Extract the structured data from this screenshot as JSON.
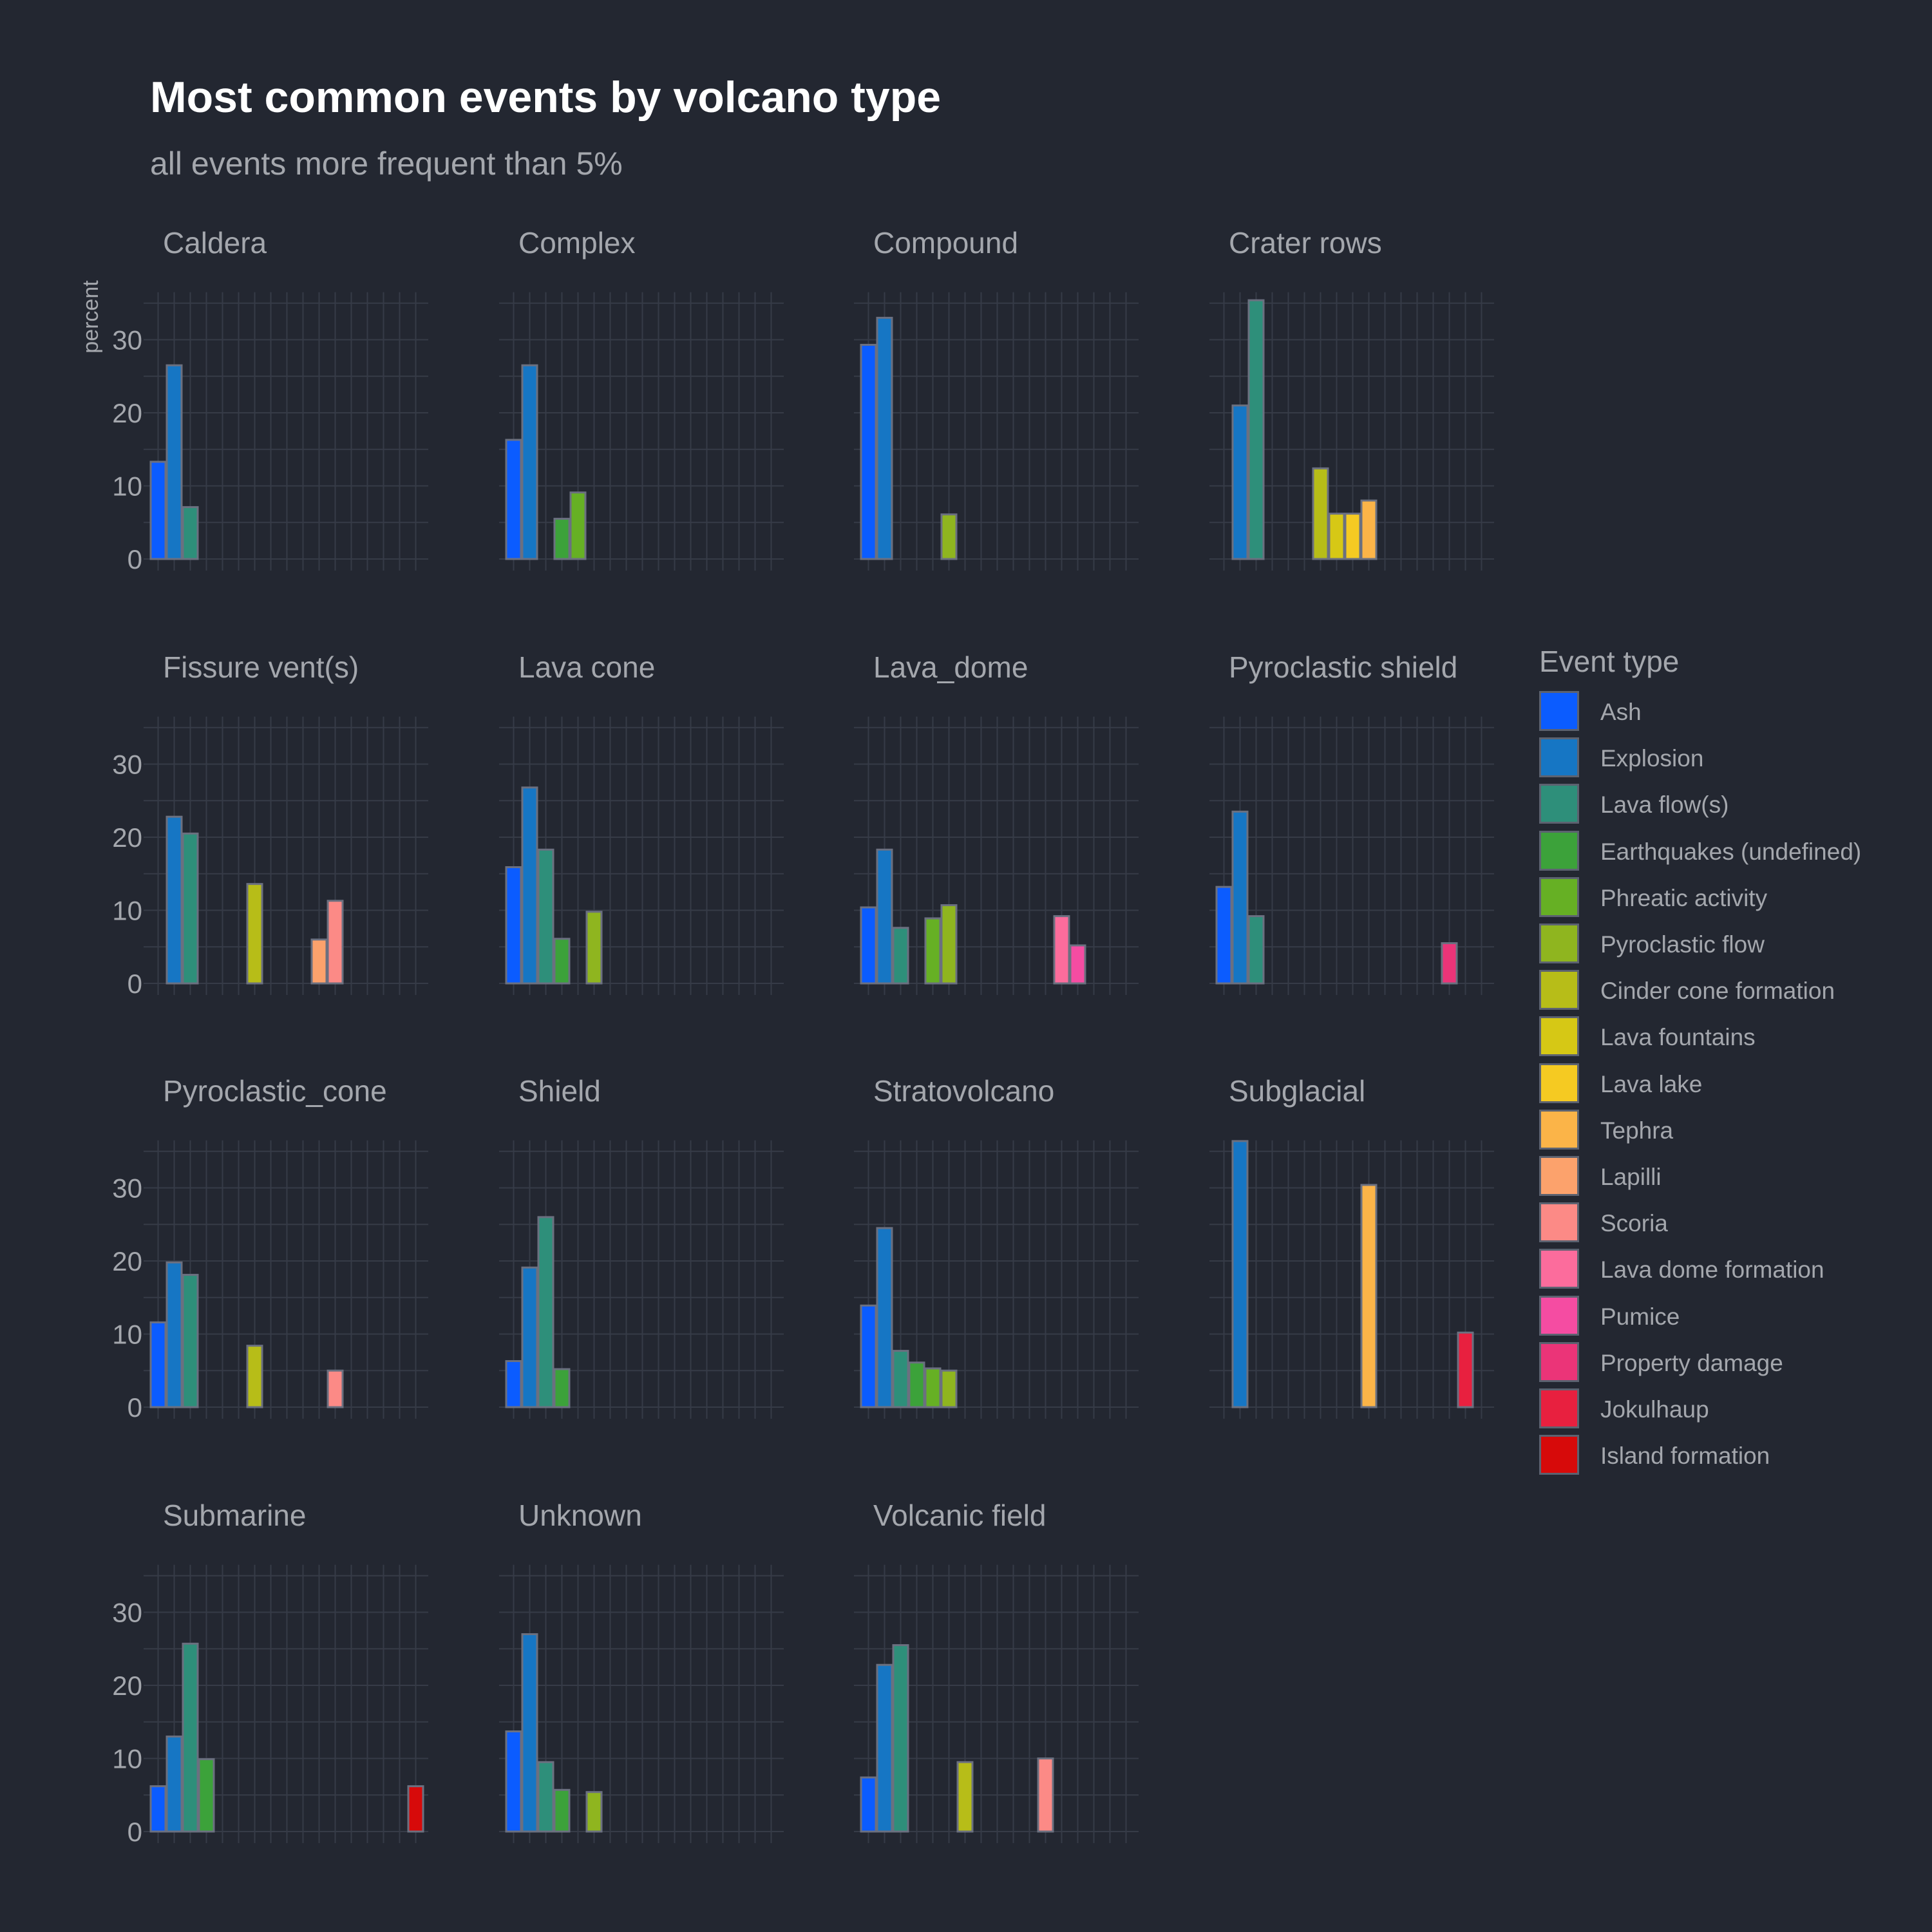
{
  "title": "Most common events by volcano type",
  "subtitle": "all events more frequent than 5%",
  "legend_title": "Event type",
  "colors": {
    "background": "#232731",
    "grid": "#363b47",
    "text": "#a4a7ad",
    "bar_border": "#6b7080"
  },
  "chart_data": {
    "type": "bar",
    "facet_ncol": 4,
    "ylabel": "percent",
    "ylim": [
      0,
      38
    ],
    "yticks": [
      0,
      10,
      20,
      30
    ],
    "grid": true,
    "legend_position": "right",
    "categories": [
      "Ash",
      "Explosion",
      "Lava flow(s)",
      "Earthquakes (undefined)",
      "Phreatic activity",
      "Pyroclastic flow",
      "Cinder cone formation",
      "Lava fountains",
      "Lava lake",
      "Tephra",
      "Lapilli",
      "Scoria",
      "Lava dome formation",
      "Pumice",
      "Property damage",
      "Jokulhaup",
      "Island formation"
    ],
    "category_colors": [
      "#0b5cff",
      "#1676c4",
      "#2e8f7a",
      "#3ca23a",
      "#66b024",
      "#8fb51f",
      "#b7bd18",
      "#d6c815",
      "#f5ca22",
      "#fbb448",
      "#fca26c",
      "#fc8a86",
      "#fc6c9c",
      "#f54ca2",
      "#eb3478",
      "#e8203f",
      "#d70a0a"
    ],
    "panels": [
      {
        "name": "Caldera",
        "values": {
          "Ash": 13.3,
          "Explosion": 26.5,
          "Lava flow(s)": 7.1
        }
      },
      {
        "name": "Complex",
        "values": {
          "Ash": 16.3,
          "Explosion": 26.5,
          "Earthquakes (undefined)": 5.5,
          "Phreatic activity": 9.1
        }
      },
      {
        "name": "Compound",
        "values": {
          "Ash": 29.3,
          "Explosion": 33.0,
          "Pyroclastic flow": 6.1
        }
      },
      {
        "name": "Crater rows",
        "values": {
          "Explosion": 21.0,
          "Lava flow(s)": 35.4,
          "Cinder cone formation": 12.4,
          "Lava fountains": 6.2,
          "Lava lake": 6.2,
          "Tephra": 8.0
        }
      },
      {
        "name": "Fissure vent(s)",
        "values": {
          "Explosion": 22.8,
          "Lava flow(s)": 20.5,
          "Cinder cone formation": 13.6,
          "Lapilli": 6.0,
          "Scoria": 11.3
        }
      },
      {
        "name": "Lava cone",
        "values": {
          "Ash": 15.9,
          "Explosion": 26.8,
          "Lava flow(s)": 18.3,
          "Earthquakes (undefined)": 6.1,
          "Pyroclastic flow": 9.8
        }
      },
      {
        "name": "Lava_dome",
        "values": {
          "Ash": 10.4,
          "Explosion": 18.3,
          "Lava flow(s)": 7.6,
          "Phreatic activity": 8.9,
          "Pyroclastic flow": 10.7,
          "Lava dome formation": 9.2,
          "Pumice": 5.2
        }
      },
      {
        "name": "Pyroclastic shield",
        "values": {
          "Ash": 13.2,
          "Explosion": 23.5,
          "Lava flow(s)": 9.2,
          "Property damage": 5.5
        }
      },
      {
        "name": "Pyroclastic_cone",
        "values": {
          "Ash": 11.6,
          "Explosion": 19.8,
          "Lava flow(s)": 18.1,
          "Cinder cone formation": 8.4,
          "Scoria": 5.0
        }
      },
      {
        "name": "Shield",
        "values": {
          "Ash": 6.3,
          "Explosion": 19.1,
          "Lava flow(s)": 26.0,
          "Earthquakes (undefined)": 5.2
        }
      },
      {
        "name": "Stratovolcano",
        "values": {
          "Ash": 13.9,
          "Explosion": 24.5,
          "Lava flow(s)": 7.7,
          "Earthquakes (undefined)": 6.1,
          "Phreatic activity": 5.3,
          "Pyroclastic flow": 5.0
        }
      },
      {
        "name": "Subglacial",
        "values": {
          "Explosion": 36.4,
          "Tephra": 30.4,
          "Jokulhaup": 10.2
        }
      },
      {
        "name": "Submarine",
        "values": {
          "Ash": 6.2,
          "Explosion": 13.0,
          "Lava flow(s)": 25.7,
          "Earthquakes (undefined)": 9.9,
          "Island formation": 6.2
        }
      },
      {
        "name": "Unknown",
        "values": {
          "Ash": 13.7,
          "Explosion": 27.0,
          "Lava flow(s)": 9.5,
          "Earthquakes (undefined)": 5.7,
          "Pyroclastic flow": 5.4
        }
      },
      {
        "name": "Volcanic field",
        "values": {
          "Ash": 7.4,
          "Explosion": 22.8,
          "Lava flow(s)": 25.5,
          "Cinder cone formation": 9.5,
          "Scoria": 10.0
        }
      }
    ]
  }
}
